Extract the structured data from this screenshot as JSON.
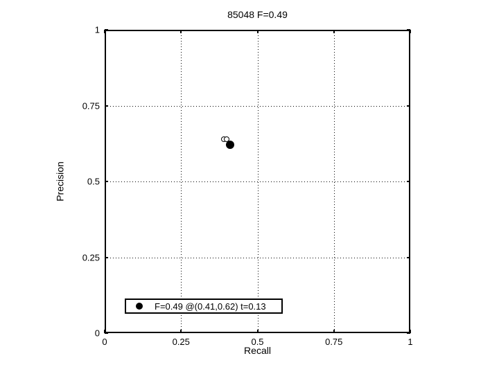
{
  "window": {
    "background": "#ffffff",
    "foreground": "#000000"
  },
  "chart_data": {
    "type": "scatter",
    "title": "85048 F=0.49",
    "xlabel": "Recall",
    "ylabel": "Precision",
    "xlim": [
      0,
      1
    ],
    "ylim": [
      0,
      1
    ],
    "tick_values": [
      0,
      0.25,
      0.5,
      0.75,
      1
    ],
    "x_tick_labels": [
      "0",
      "0.25",
      "0.5",
      "0.75",
      "1"
    ],
    "y_tick_labels": [
      "0",
      "0.25",
      "0.5",
      "0.75",
      "1"
    ],
    "grid": {
      "show": true,
      "style": "dotted",
      "color": "#000000"
    },
    "axis_color": "#000000",
    "series": [
      {
        "name": "best-f-score-point",
        "marker": "filled-circle",
        "color": "#000000",
        "points": [
          [
            0.41,
            0.62
          ]
        ]
      },
      {
        "name": "nearby-operating-points",
        "marker": "open-circle",
        "color": "#000000",
        "points": [
          [
            0.39,
            0.64
          ],
          [
            0.4,
            0.64
          ]
        ]
      }
    ],
    "legend": {
      "position": "bottom-left-inside",
      "entries": [
        {
          "marker": "filled-circle",
          "label": "F=0.49 @(0.41,0.62) t=0.13"
        }
      ]
    }
  }
}
